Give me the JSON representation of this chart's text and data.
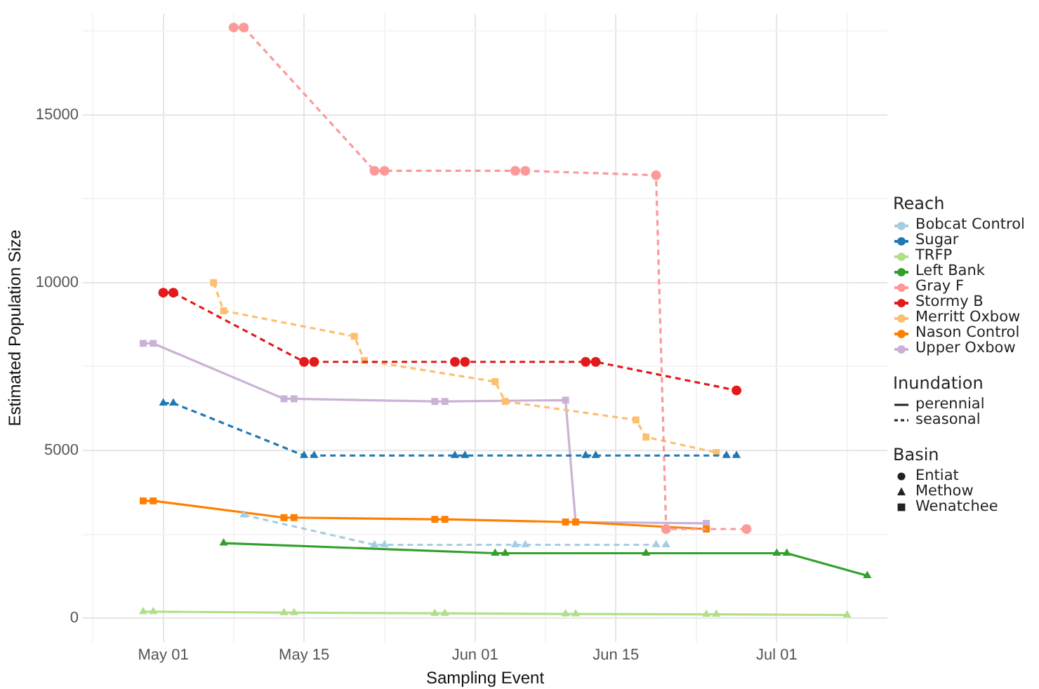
{
  "chart_data": {
    "type": "line",
    "xlabel": "Sampling Event",
    "ylabel": "Estimated Population Size",
    "legend_title": "Reach",
    "legend": "right",
    "grid": true,
    "xlim": [
      "--04-23",
      "--07-12"
    ],
    "xticks": [
      {
        "value": "--04-24",
        "label": null
      },
      {
        "value": "--05-01",
        "label": "May 01"
      },
      {
        "value": "--05-08",
        "label": null
      },
      {
        "value": "--05-15",
        "label": "May 15"
      },
      {
        "value": "--05-23",
        "label": null
      },
      {
        "value": "--06-01",
        "label": "Jun 01"
      },
      {
        "value": "--06-08",
        "label": null
      },
      {
        "value": "--06-15",
        "label": "Jun 15"
      },
      {
        "value": "--06-23",
        "label": null
      },
      {
        "value": "--07-01",
        "label": "Jul 01"
      },
      {
        "value": "--07-08",
        "label": null
      }
    ],
    "ylim": [
      -700,
      18000
    ],
    "yticks": [
      0,
      {
        "value": 2500,
        "label": null
      },
      5000,
      {
        "value": 7500,
        "label": null
      },
      10000,
      {
        "value": 12500,
        "label": null
      },
      15000,
      {
        "value": 17500,
        "label": null
      }
    ],
    "series": [
      {
        "name": "Bobcat Control",
        "color": "#a6cee3",
        "line_style": "dashed",
        "marker": "triangle",
        "x": [
          "--05-09",
          "--05-22",
          "--05-23",
          "--06-05",
          "--06-06",
          "--06-19",
          "--06-20"
        ],
        "values": [
          3080,
          2190,
          2190,
          2190,
          2190,
          2190,
          2190
        ]
      },
      {
        "name": "Sugar",
        "color": "#1f78b4",
        "line_style": "dashed",
        "marker": "triangle",
        "x": [
          "--05-01",
          "--05-02",
          "--05-15",
          "--05-16",
          "--05-30",
          "--05-31",
          "--06-12",
          "--06-13",
          "--06-26",
          "--06-27"
        ],
        "values": [
          6410,
          6410,
          4850,
          4850,
          4850,
          4850,
          4850,
          4850,
          4850,
          4850
        ]
      },
      {
        "name": "TRFP",
        "color": "#b2df8a",
        "line_style": "solid",
        "marker": "triangle",
        "x": [
          "--04-29",
          "--04-30",
          "--05-13",
          "--05-14",
          "--05-28",
          "--05-29",
          "--06-10",
          "--06-11",
          "--06-24",
          "--06-25",
          "--07-08"
        ],
        "values": [
          200,
          200,
          170,
          170,
          150,
          150,
          130,
          130,
          120,
          120,
          100
        ]
      },
      {
        "name": "Left Bank",
        "color": "#33a02c",
        "line_style": "solid",
        "marker": "triangle",
        "x": [
          "--05-07",
          "--06-03",
          "--06-04",
          "--06-18",
          "--07-01",
          "--07-02",
          "--07-10"
        ],
        "values": [
          2240,
          1940,
          1940,
          1940,
          1940,
          1940,
          1270
        ]
      },
      {
        "name": "Gray F",
        "color": "#fb9a99",
        "line_style": "dashed",
        "marker": "circle",
        "x": [
          "--05-08",
          "--05-09",
          "--05-22",
          "--05-23",
          "--06-05",
          "--06-06",
          "--06-19",
          "--06-20",
          "--06-28"
        ],
        "values": [
          17600,
          17600,
          13330,
          13330,
          13330,
          13330,
          13200,
          2660,
          2660
        ]
      },
      {
        "name": "Stormy B",
        "color": "#e31a1c",
        "line_style": "dashed",
        "marker": "circle",
        "x": [
          "--05-01",
          "--05-02",
          "--05-15",
          "--05-16",
          "--05-30",
          "--05-31",
          "--06-12",
          "--06-13",
          "--06-27"
        ],
        "values": [
          9700,
          9700,
          7640,
          7640,
          7640,
          7640,
          7640,
          7640,
          6790
        ]
      },
      {
        "name": "Merritt Oxbow",
        "color": "#fdbf6f",
        "line_style": "dashed",
        "marker": "square",
        "x": [
          "--05-06",
          "--05-07",
          "--05-20",
          "--05-21",
          "--06-03",
          "--06-04",
          "--06-17",
          "--06-18",
          "--06-25"
        ],
        "values": [
          10000,
          9160,
          8400,
          7680,
          7050,
          6460,
          5910,
          5400,
          4940
        ]
      },
      {
        "name": "Nason Control",
        "color": "#ff7f00",
        "line_style": "solid",
        "marker": "square",
        "x": [
          "--04-29",
          "--04-30",
          "--05-13",
          "--05-14",
          "--05-28",
          "--05-29",
          "--06-10",
          "--06-11",
          "--06-24"
        ],
        "values": [
          3500,
          3500,
          3000,
          3000,
          2950,
          2950,
          2870,
          2870,
          2660
        ]
      },
      {
        "name": "Upper Oxbow",
        "color": "#cab2d6",
        "line_style": "solid",
        "marker": "square",
        "x": [
          "--04-29",
          "--04-30",
          "--05-13",
          "--05-14",
          "--05-28",
          "--05-29",
          "--06-10",
          "--06-11",
          "--06-24"
        ],
        "values": [
          8190,
          8190,
          6540,
          6540,
          6460,
          6460,
          6500,
          2870,
          2830
        ]
      }
    ],
    "annotations": [
      "Inundation",
      "perennial",
      "seasonal",
      "Basin",
      "Entiat",
      "Methow",
      "Wenatchee"
    ]
  }
}
